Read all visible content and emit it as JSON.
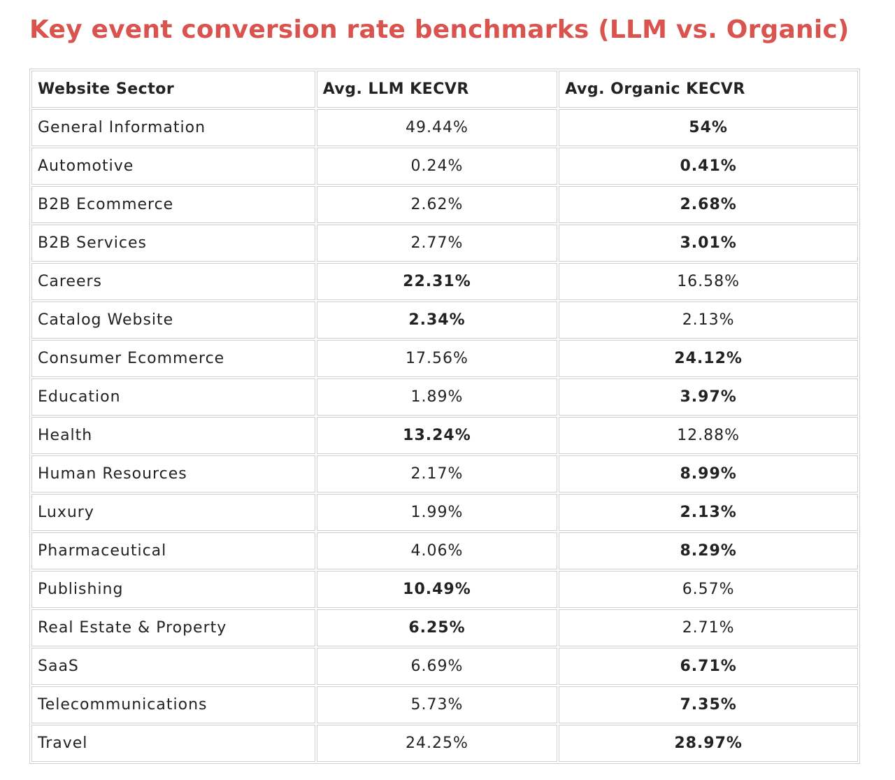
{
  "title": "Key event conversion rate benchmarks (LLM vs. Organic)",
  "colors": {
    "title": "#d9534f",
    "border": "#cfcfcf",
    "text": "#222222"
  },
  "table": {
    "headers": [
      "Website Sector",
      "Avg. LLM KECVR",
      "Avg. Organic KECVR"
    ],
    "rows": [
      {
        "sector": "General Information",
        "llm": "49.44%",
        "organic": "54%",
        "higher": "organic"
      },
      {
        "sector": "Automotive",
        "llm": "0.24%",
        "organic": "0.41%",
        "higher": "organic"
      },
      {
        "sector": "B2B Ecommerce",
        "llm": "2.62%",
        "organic": "2.68%",
        "higher": "organic"
      },
      {
        "sector": "B2B Services",
        "llm": "2.77%",
        "organic": "3.01%",
        "higher": "organic"
      },
      {
        "sector": "Careers",
        "llm": "22.31%",
        "organic": "16.58%",
        "higher": "llm"
      },
      {
        "sector": "Catalog Website",
        "llm": "2.34%",
        "organic": "2.13%",
        "higher": "llm"
      },
      {
        "sector": "Consumer Ecommerce",
        "llm": "17.56%",
        "organic": "24.12%",
        "higher": "organic"
      },
      {
        "sector": "Education",
        "llm": "1.89%",
        "organic": "3.97%",
        "higher": "organic"
      },
      {
        "sector": "Health",
        "llm": "13.24%",
        "organic": "12.88%",
        "higher": "llm"
      },
      {
        "sector": "Human Resources",
        "llm": "2.17%",
        "organic": "8.99%",
        "higher": "organic"
      },
      {
        "sector": "Luxury",
        "llm": "1.99%",
        "organic": "2.13%",
        "higher": "organic"
      },
      {
        "sector": "Pharmaceutical",
        "llm": "4.06%",
        "organic": "8.29%",
        "higher": "organic"
      },
      {
        "sector": "Publishing",
        "llm": "10.49%",
        "organic": "6.57%",
        "higher": "llm"
      },
      {
        "sector": "Real Estate & Property",
        "llm": "6.25%",
        "organic": "2.71%",
        "higher": "llm"
      },
      {
        "sector": "SaaS",
        "llm": "6.69%",
        "organic": "6.71%",
        "higher": "organic"
      },
      {
        "sector": "Telecommunications",
        "llm": "5.73%",
        "organic": "7.35%",
        "higher": "organic"
      },
      {
        "sector": "Travel",
        "llm": "24.25%",
        "organic": "28.97%",
        "higher": "organic"
      }
    ]
  }
}
